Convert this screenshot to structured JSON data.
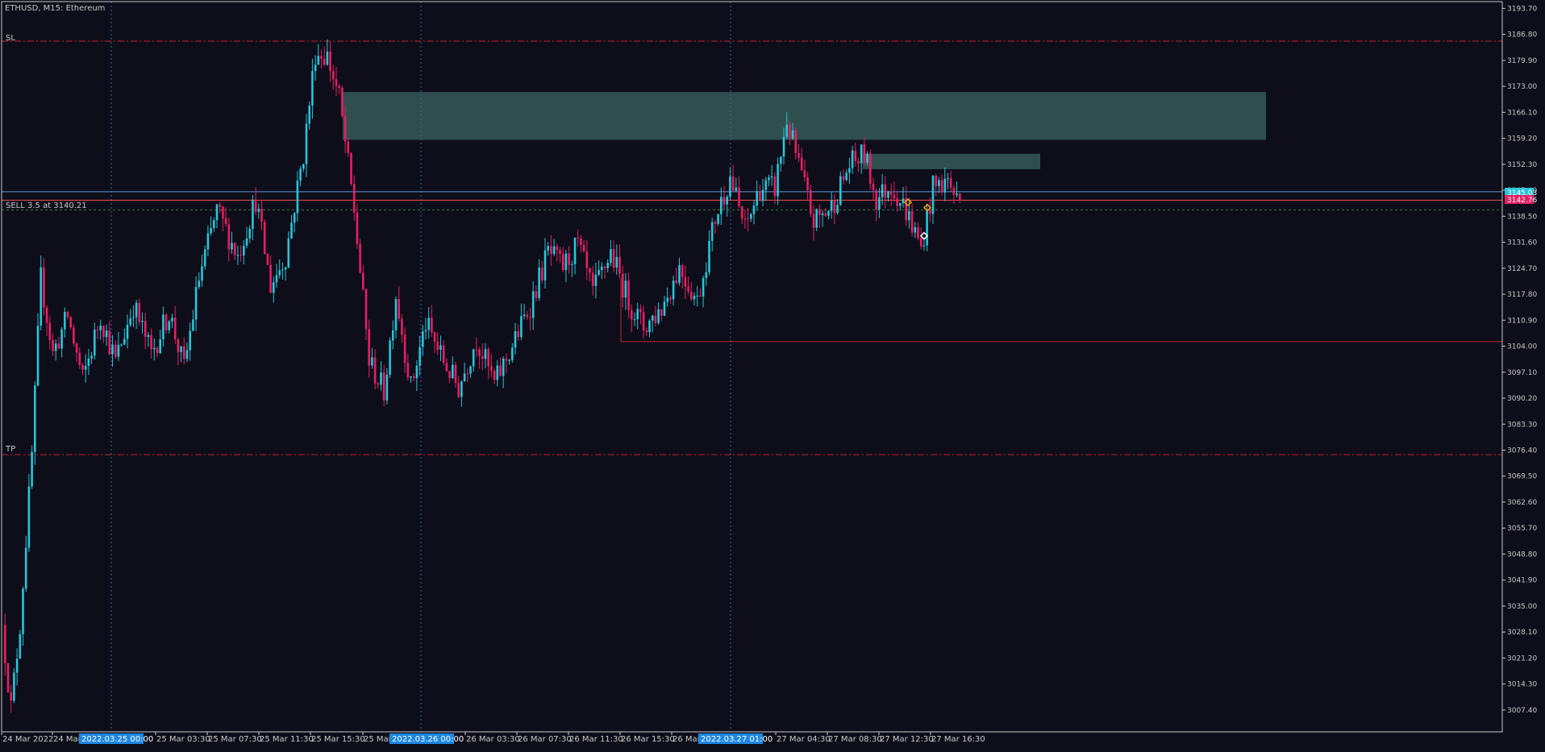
{
  "header": {
    "title": "ETHUSD, M15:  Ethereum"
  },
  "colors": {
    "background": "#0e0e1a",
    "frame": "#c8c8c8",
    "bull": "#26c6da",
    "bear": "#e91e63",
    "zone": "#2f4f4f",
    "sl_tp_line": "#c81e32",
    "entry_line": "#2e7d32",
    "bid_line": "#5b9bd5",
    "ask_line": "#ef5350",
    "support_line": "#c0282d",
    "axis_text": "#c8c8c8",
    "vline": "#1e6fb8",
    "date_badge": "#1e88e5"
  },
  "labels": {
    "sl": "SL",
    "tp": "TP",
    "position": "SELL 3.5 at 3140.21",
    "price_badge_bid": "3145.03",
    "price_badge_ask": "3142.76"
  },
  "date_badges": [
    "2022.03.25 00:00",
    "2022.03.26 00:00",
    "2022.03.27 01:00"
  ],
  "chart_data": {
    "type": "candlestick",
    "symbol": "ETHUSD",
    "timeframe": "M15",
    "ylim": [
      3001.6,
      3195.5
    ],
    "y_ticks": [
      3193.7,
      3186.8,
      3179.9,
      3173.0,
      3166.1,
      3159.2,
      3152.3,
      3145.4,
      3138.5,
      3131.6,
      3124.7,
      3117.8,
      3110.9,
      3104.0,
      3097.1,
      3090.2,
      3083.3,
      3076.4,
      3069.5,
      3062.6,
      3055.7,
      3048.8,
      3041.9,
      3035.0,
      3028.1,
      3021.2,
      3014.3,
      3007.4
    ],
    "x_ticks": [
      "24 Mar 2022",
      "24 Mar",
      "25 Mar 03:30",
      "25 Mar 07:30",
      "25 Mar 11:30",
      "25 Mar 15:30",
      "25 Mar",
      "26 Mar 03:30",
      "26 Mar 07:30",
      "26 Mar 11:30",
      "26 Mar 15:30",
      "26 Mar",
      "27 Mar 04:30",
      "27 Mar 08:30",
      "27 Mar 12:30",
      "27 Mar 16:30"
    ],
    "levels": {
      "sl": 3185.0,
      "tp": 3075.2,
      "entry": 3140.21,
      "bid": 3145.03,
      "ask": 3142.76,
      "support": 3105.2
    },
    "zones": [
      {
        "y_top": 3171.5,
        "y_bottom": 3158.8
      },
      {
        "y_top": 3155.1,
        "y_bottom": 3151.0
      }
    ],
    "anchors": [
      {
        "i": 0,
        "p": 3030
      },
      {
        "i": 3,
        "p": 3008
      },
      {
        "i": 6,
        "p": 3030
      },
      {
        "i": 10,
        "p": 3075
      },
      {
        "i": 13,
        "p": 3122
      },
      {
        "i": 17,
        "p": 3102
      },
      {
        "i": 22,
        "p": 3112
      },
      {
        "i": 27,
        "p": 3095
      },
      {
        "i": 33,
        "p": 3112
      },
      {
        "i": 38,
        "p": 3100
      },
      {
        "i": 44,
        "p": 3115
      },
      {
        "i": 50,
        "p": 3102
      },
      {
        "i": 56,
        "p": 3113
      },
      {
        "i": 61,
        "p": 3098
      },
      {
        "i": 66,
        "p": 3122
      },
      {
        "i": 72,
        "p": 3140
      },
      {
        "i": 79,
        "p": 3128
      },
      {
        "i": 85,
        "p": 3143
      },
      {
        "i": 90,
        "p": 3120
      },
      {
        "i": 95,
        "p": 3128
      },
      {
        "i": 101,
        "p": 3155
      },
      {
        "i": 105,
        "p": 3182
      },
      {
        "i": 109,
        "p": 3181
      },
      {
        "i": 113,
        "p": 3170
      },
      {
        "i": 118,
        "p": 3140
      },
      {
        "i": 123,
        "p": 3100
      },
      {
        "i": 128,
        "p": 3092
      },
      {
        "i": 132,
        "p": 3118
      },
      {
        "i": 137,
        "p": 3093
      },
      {
        "i": 142,
        "p": 3110
      },
      {
        "i": 148,
        "p": 3100
      },
      {
        "i": 153,
        "p": 3093
      },
      {
        "i": 159,
        "p": 3106
      },
      {
        "i": 165,
        "p": 3094
      },
      {
        "i": 171,
        "p": 3104
      },
      {
        "i": 177,
        "p": 3115
      },
      {
        "i": 183,
        "p": 3129
      },
      {
        "i": 188,
        "p": 3125
      },
      {
        "i": 193,
        "p": 3131
      },
      {
        "i": 198,
        "p": 3118
      },
      {
        "i": 204,
        "p": 3129
      },
      {
        "i": 210,
        "p": 3116
      },
      {
        "i": 215,
        "p": 3109
      },
      {
        "i": 221,
        "p": 3114
      },
      {
        "i": 227,
        "p": 3125
      },
      {
        "i": 233,
        "p": 3116
      },
      {
        "i": 239,
        "p": 3138
      },
      {
        "i": 244,
        "p": 3149
      },
      {
        "i": 249,
        "p": 3135
      },
      {
        "i": 254,
        "p": 3146
      },
      {
        "i": 259,
        "p": 3146
      },
      {
        "i": 263,
        "p": 3164
      },
      {
        "i": 267,
        "p": 3152
      },
      {
        "i": 272,
        "p": 3137
      },
      {
        "i": 278,
        "p": 3141
      },
      {
        "i": 284,
        "p": 3152
      },
      {
        "i": 289,
        "p": 3155
      },
      {
        "i": 293,
        "p": 3143
      },
      {
        "i": 298,
        "p": 3147
      },
      {
        "i": 303,
        "p": 3140
      },
      {
        "i": 308,
        "p": 3130
      },
      {
        "i": 312,
        "p": 3146
      },
      {
        "i": 317,
        "p": 3148
      },
      {
        "i": 320,
        "p": 3143
      }
    ]
  }
}
